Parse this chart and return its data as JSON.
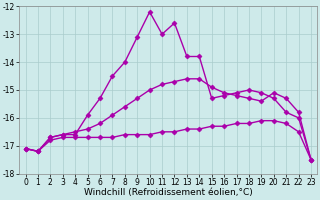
{
  "xlabel": "Windchill (Refroidissement éolien,°C)",
  "bg_color": "#ceeaea",
  "grid_color": "#aacccc",
  "line_color": "#aa00aa",
  "xlim": [
    -0.5,
    23.5
  ],
  "ylim": [
    -18,
    -12
  ],
  "xticks": [
    0,
    1,
    2,
    3,
    4,
    5,
    6,
    7,
    8,
    9,
    10,
    11,
    12,
    13,
    14,
    15,
    16,
    17,
    18,
    19,
    20,
    21,
    22,
    23
  ],
  "yticks": [
    -18,
    -17,
    -16,
    -15,
    -14,
    -13,
    -12
  ],
  "series": [
    {
      "x": [
        0,
        1,
        2,
        3,
        4,
        5,
        6,
        7,
        8,
        9,
        10,
        11,
        12,
        13,
        14,
        15,
        16,
        17,
        18,
        19,
        20,
        21,
        22,
        23
      ],
      "y": [
        -17.1,
        -17.2,
        -16.7,
        -16.6,
        -16.6,
        -15.9,
        -15.3,
        -14.5,
        -14.0,
        -13.1,
        -12.2,
        -13.0,
        -12.6,
        -13.8,
        -13.8,
        -15.3,
        -15.2,
        -15.1,
        -15.0,
        -15.1,
        -15.3,
        -15.8,
        -16.0,
        -17.5
      ]
    },
    {
      "x": [
        0,
        1,
        2,
        3,
        4,
        5,
        6,
        7,
        8,
        9,
        10,
        11,
        12,
        13,
        14,
        15,
        16,
        17,
        18,
        19,
        20,
        21,
        22,
        23
      ],
      "y": [
        -17.1,
        -17.2,
        -16.7,
        -16.6,
        -16.5,
        -16.4,
        -16.2,
        -15.9,
        -15.6,
        -15.3,
        -15.0,
        -14.8,
        -14.7,
        -14.6,
        -14.6,
        -14.9,
        -15.1,
        -15.2,
        -15.3,
        -15.4,
        -15.1,
        -15.3,
        -15.8,
        -17.5
      ]
    },
    {
      "x": [
        0,
        1,
        2,
        3,
        4,
        5,
        6,
        7,
        8,
        9,
        10,
        11,
        12,
        13,
        14,
        15,
        16,
        17,
        18,
        19,
        20,
        21,
        22,
        23
      ],
      "y": [
        -17.1,
        -17.2,
        -16.8,
        -16.7,
        -16.7,
        -16.7,
        -16.7,
        -16.7,
        -16.6,
        -16.6,
        -16.6,
        -16.5,
        -16.5,
        -16.4,
        -16.4,
        -16.3,
        -16.3,
        -16.2,
        -16.2,
        -16.1,
        -16.1,
        -16.2,
        -16.5,
        -17.5
      ]
    }
  ],
  "marker_size": 2.5,
  "linewidth": 1.0,
  "tick_fontsize": 5.5,
  "xlabel_fontsize": 6.5
}
